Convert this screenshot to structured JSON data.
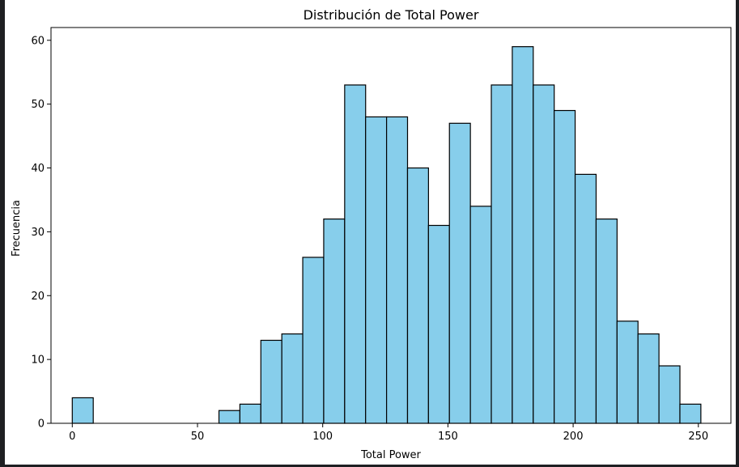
{
  "chart_data": {
    "type": "bar",
    "title": "Distribución de Total Power",
    "xlabel": "Total Power",
    "ylabel": "Frecuencia",
    "xlim": [
      -8.5,
      263
    ],
    "ylim": [
      0,
      62
    ],
    "xticks": [
      0,
      50,
      100,
      150,
      200,
      250
    ],
    "yticks": [
      0,
      10,
      20,
      30,
      40,
      50,
      60
    ],
    "bin_width": 8.37,
    "bins": [
      {
        "start": 0.0,
        "value": 4
      },
      {
        "start": 8.37,
        "value": 0
      },
      {
        "start": 16.73,
        "value": 0
      },
      {
        "start": 25.1,
        "value": 0
      },
      {
        "start": 33.47,
        "value": 0
      },
      {
        "start": 41.83,
        "value": 0
      },
      {
        "start": 50.2,
        "value": 0
      },
      {
        "start": 58.57,
        "value": 2
      },
      {
        "start": 66.93,
        "value": 3
      },
      {
        "start": 75.3,
        "value": 13
      },
      {
        "start": 83.67,
        "value": 14
      },
      {
        "start": 92.03,
        "value": 26
      },
      {
        "start": 100.4,
        "value": 32
      },
      {
        "start": 108.77,
        "value": 53
      },
      {
        "start": 117.13,
        "value": 48
      },
      {
        "start": 125.5,
        "value": 48
      },
      {
        "start": 133.87,
        "value": 40
      },
      {
        "start": 142.23,
        "value": 31
      },
      {
        "start": 150.6,
        "value": 47
      },
      {
        "start": 158.97,
        "value": 34
      },
      {
        "start": 167.33,
        "value": 53
      },
      {
        "start": 175.7,
        "value": 59
      },
      {
        "start": 184.07,
        "value": 53
      },
      {
        "start": 192.43,
        "value": 49
      },
      {
        "start": 200.8,
        "value": 39
      },
      {
        "start": 209.17,
        "value": 32
      },
      {
        "start": 217.53,
        "value": 16
      },
      {
        "start": 225.9,
        "value": 14
      },
      {
        "start": 234.27,
        "value": 9
      },
      {
        "start": 242.63,
        "value": 3
      }
    ],
    "colors": {
      "bar_fill": "#87ceeb",
      "bar_edge": "#000000"
    },
    "grid": false,
    "legend": false
  }
}
